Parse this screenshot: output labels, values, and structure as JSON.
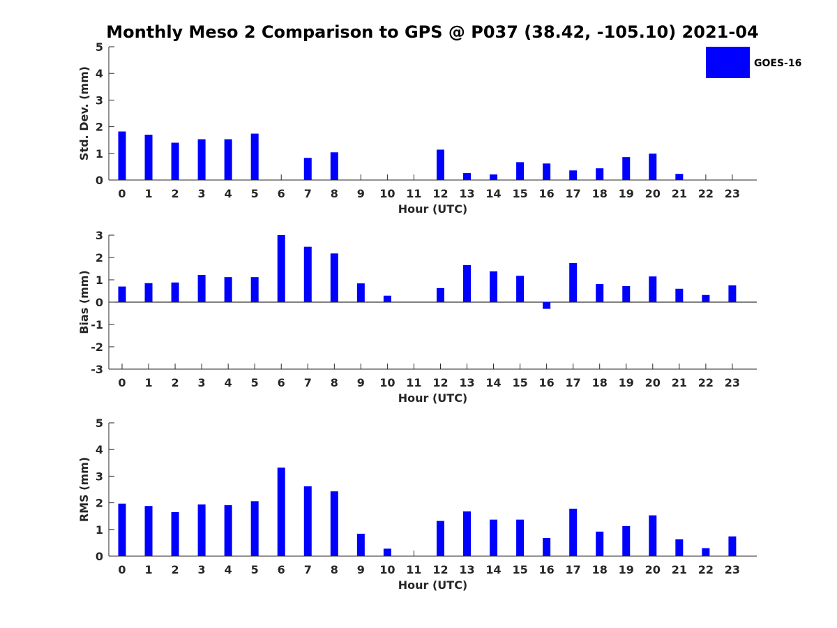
{
  "figure": {
    "title": "Monthly Meso 2 Comparison to GPS @ P037 (38.42, -105.10) 2021-04",
    "legend": {
      "label": "GOES-16",
      "color": "#0000ff"
    }
  },
  "chart_data": [
    {
      "type": "bar",
      "xlabel": "Hour (UTC)",
      "ylabel": "Std. Dev. (mm)",
      "ylim": [
        0,
        5
      ],
      "yticks": [
        0,
        1,
        2,
        3,
        4,
        5
      ],
      "categories": [
        "0",
        "1",
        "2",
        "3",
        "4",
        "5",
        "6",
        "7",
        "8",
        "9",
        "10",
        "11",
        "12",
        "13",
        "14",
        "15",
        "16",
        "17",
        "18",
        "19",
        "20",
        "21",
        "22",
        "23"
      ],
      "series": [
        {
          "name": "GOES-16",
          "color": "#0000ff",
          "values": [
            1.82,
            1.7,
            1.4,
            1.53,
            1.53,
            1.74,
            null,
            0.83,
            1.04,
            null,
            null,
            null,
            1.14,
            0.26,
            0.21,
            0.67,
            0.62,
            0.36,
            0.44,
            0.86,
            0.99,
            0.23,
            null,
            null
          ]
        }
      ]
    },
    {
      "type": "bar",
      "xlabel": "Hour (UTC)",
      "ylabel": "Bias (mm)",
      "ylim": [
        -3,
        3
      ],
      "yticks": [
        -3,
        -2,
        -1,
        0,
        1,
        2,
        3
      ],
      "categories": [
        "0",
        "1",
        "2",
        "3",
        "4",
        "5",
        "6",
        "7",
        "8",
        "9",
        "10",
        "11",
        "12",
        "13",
        "14",
        "15",
        "16",
        "17",
        "18",
        "19",
        "20",
        "21",
        "22",
        "23"
      ],
      "series": [
        {
          "name": "GOES-16",
          "color": "#0000ff",
          "values": [
            0.7,
            0.85,
            0.88,
            1.22,
            1.12,
            1.12,
            3.0,
            2.48,
            2.18,
            0.84,
            0.29,
            null,
            0.63,
            1.66,
            1.38,
            1.18,
            -0.3,
            1.75,
            0.81,
            0.72,
            1.15,
            0.6,
            0.32,
            0.75
          ]
        }
      ]
    },
    {
      "type": "bar",
      "xlabel": "Hour (UTC)",
      "ylabel": "RMS (mm)",
      "ylim": [
        0,
        5
      ],
      "yticks": [
        0,
        1,
        2,
        3,
        4,
        5
      ],
      "categories": [
        "0",
        "1",
        "2",
        "3",
        "4",
        "5",
        "6",
        "7",
        "8",
        "9",
        "10",
        "11",
        "12",
        "13",
        "14",
        "15",
        "16",
        "17",
        "18",
        "19",
        "20",
        "21",
        "22",
        "23"
      ],
      "series": [
        {
          "name": "GOES-16",
          "color": "#0000ff",
          "values": [
            1.97,
            1.88,
            1.65,
            1.94,
            1.91,
            2.06,
            3.32,
            2.62,
            2.43,
            0.84,
            0.28,
            null,
            1.32,
            1.68,
            1.37,
            1.37,
            0.68,
            1.78,
            0.92,
            1.13,
            1.53,
            0.63,
            0.3,
            0.74
          ]
        }
      ]
    }
  ]
}
